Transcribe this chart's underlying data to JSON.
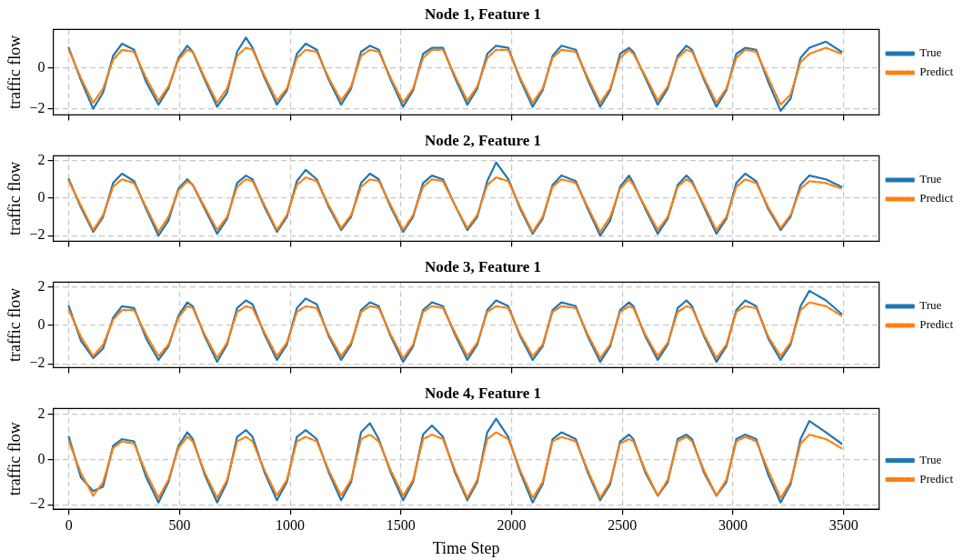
{
  "chart_data": [
    {
      "type": "line",
      "title": "Node 1, Feature 1",
      "ylabel": "traffic flow",
      "xlim": [
        -70,
        3660
      ],
      "xticks": [
        0,
        500,
        1000,
        1500,
        2000,
        2500,
        3000,
        3500
      ],
      "ylim": [
        -2.3,
        1.9
      ],
      "yticks": [
        -2,
        0
      ],
      "grid": true,
      "legend": "right",
      "marker": "none",
      "tick_labels": "y",
      "x": [
        0,
        55,
        110,
        155,
        200,
        240,
        295,
        350,
        405,
        450,
        495,
        535,
        560,
        615,
        670,
        715,
        760,
        800,
        830,
        885,
        940,
        985,
        1030,
        1070,
        1120,
        1175,
        1230,
        1275,
        1320,
        1360,
        1400,
        1455,
        1510,
        1555,
        1600,
        1640,
        1690,
        1745,
        1800,
        1845,
        1890,
        1930,
        1985,
        2040,
        2095,
        2140,
        2185,
        2225,
        2290,
        2345,
        2400,
        2445,
        2490,
        2530,
        2550,
        2605,
        2660,
        2705,
        2750,
        2790,
        2815,
        2870,
        2925,
        2970,
        3015,
        3055,
        3105,
        3160,
        3215,
        3260,
        3305,
        3345,
        3420,
        3490
      ],
      "series": [
        {
          "name": "True",
          "color": "#1f77b4",
          "line_style": "solid",
          "values": [
            1.0,
            -0.6,
            -2.0,
            -1.2,
            0.6,
            1.2,
            0.9,
            -0.7,
            -1.8,
            -1.0,
            0.5,
            1.1,
            0.8,
            -0.6,
            -1.9,
            -1.2,
            0.8,
            1.5,
            1.0,
            -0.5,
            -1.8,
            -1.1,
            0.7,
            1.2,
            0.9,
            -0.6,
            -1.8,
            -1.0,
            0.8,
            1.1,
            0.9,
            -0.6,
            -1.9,
            -1.1,
            0.7,
            1.0,
            1.0,
            -0.5,
            -1.8,
            -1.0,
            0.7,
            1.1,
            1.0,
            -0.6,
            -1.9,
            -1.1,
            0.6,
            1.1,
            0.9,
            -0.6,
            -1.9,
            -1.1,
            0.7,
            1.0,
            0.8,
            -0.5,
            -1.8,
            -1.0,
            0.6,
            1.1,
            0.9,
            -0.6,
            -1.9,
            -1.1,
            0.7,
            1.0,
            0.9,
            -0.7,
            -2.1,
            -1.5,
            0.5,
            1.0,
            1.3,
            0.8
          ]
        },
        {
          "name": "Predict",
          "color": "#ff7f0e",
          "line_style": "dashed",
          "values": [
            0.9,
            -0.5,
            -1.7,
            -1.0,
            0.4,
            0.9,
            0.8,
            -0.5,
            -1.6,
            -0.9,
            0.4,
            0.9,
            0.8,
            -0.5,
            -1.7,
            -1.0,
            0.6,
            1.0,
            0.9,
            -0.4,
            -1.6,
            -1.0,
            0.5,
            0.9,
            0.8,
            -0.5,
            -1.6,
            -0.9,
            0.6,
            0.9,
            0.8,
            -0.5,
            -1.7,
            -1.0,
            0.5,
            0.9,
            0.9,
            -0.4,
            -1.6,
            -0.9,
            0.5,
            0.9,
            0.9,
            -0.5,
            -1.7,
            -1.0,
            0.5,
            0.9,
            0.8,
            -0.5,
            -1.7,
            -1.0,
            0.5,
            0.9,
            0.7,
            -0.4,
            -1.6,
            -0.9,
            0.5,
            0.9,
            0.8,
            -0.5,
            -1.7,
            -1.0,
            0.5,
            0.9,
            0.8,
            -0.5,
            -1.8,
            -1.3,
            0.3,
            0.7,
            1.0,
            0.7
          ]
        }
      ]
    },
    {
      "type": "line",
      "title": "Node 2, Feature 1",
      "ylabel": "traffic flow",
      "xlim": [
        -70,
        3660
      ],
      "xticks": [
        0,
        500,
        1000,
        1500,
        2000,
        2500,
        3000,
        3500
      ],
      "ylim": [
        -2.3,
        2.25
      ],
      "yticks": [
        -2,
        0,
        2
      ],
      "grid": true,
      "legend": "right",
      "marker": "none",
      "tick_labels": "y",
      "x": [
        0,
        55,
        110,
        155,
        200,
        240,
        295,
        350,
        405,
        450,
        495,
        535,
        560,
        615,
        670,
        715,
        760,
        800,
        830,
        885,
        940,
        985,
        1030,
        1070,
        1120,
        1175,
        1230,
        1275,
        1320,
        1360,
        1400,
        1455,
        1510,
        1555,
        1600,
        1640,
        1690,
        1745,
        1800,
        1845,
        1890,
        1930,
        1985,
        2040,
        2095,
        2140,
        2185,
        2225,
        2290,
        2345,
        2400,
        2445,
        2490,
        2530,
        2550,
        2605,
        2660,
        2705,
        2750,
        2790,
        2815,
        2870,
        2925,
        2970,
        3015,
        3055,
        3105,
        3160,
        3215,
        3260,
        3305,
        3345,
        3420,
        3490
      ],
      "series": [
        {
          "name": "True",
          "color": "#1f77b4",
          "line_style": "solid",
          "values": [
            1.0,
            -0.5,
            -1.8,
            -1.0,
            0.8,
            1.3,
            0.9,
            -0.6,
            -2.0,
            -1.2,
            0.5,
            1.0,
            0.7,
            -0.6,
            -1.9,
            -1.1,
            0.8,
            1.2,
            1.0,
            -0.5,
            -1.8,
            -1.0,
            0.9,
            1.5,
            1.0,
            -0.5,
            -1.7,
            -1.0,
            0.8,
            1.3,
            1.0,
            -0.5,
            -1.8,
            -1.0,
            0.8,
            1.2,
            1.0,
            -0.4,
            -1.7,
            -1.0,
            0.9,
            1.9,
            1.0,
            -0.6,
            -1.9,
            -1.1,
            0.7,
            1.2,
            0.9,
            -0.6,
            -2.0,
            -1.2,
            0.6,
            1.2,
            0.8,
            -0.6,
            -1.9,
            -1.1,
            0.7,
            1.2,
            0.9,
            -0.5,
            -1.9,
            -1.1,
            0.8,
            1.3,
            0.9,
            -0.6,
            -1.7,
            -1.0,
            0.7,
            1.2,
            1.0,
            0.6
          ]
        },
        {
          "name": "Predict",
          "color": "#ff7f0e",
          "line_style": "dashed",
          "values": [
            0.9,
            -0.4,
            -1.7,
            -0.9,
            0.6,
            1.0,
            0.8,
            -0.5,
            -1.8,
            -1.0,
            0.4,
            0.9,
            0.7,
            -0.5,
            -1.7,
            -1.0,
            0.6,
            1.0,
            0.9,
            -0.4,
            -1.7,
            -0.9,
            0.7,
            1.1,
            0.9,
            -0.4,
            -1.6,
            -0.9,
            0.6,
            1.0,
            0.9,
            -0.4,
            -1.7,
            -0.9,
            0.6,
            1.0,
            0.9,
            -0.4,
            -1.6,
            -0.9,
            0.7,
            1.1,
            0.9,
            -0.5,
            -1.8,
            -1.0,
            0.6,
            1.0,
            0.8,
            -0.5,
            -1.8,
            -1.0,
            0.5,
            1.0,
            0.7,
            -0.5,
            -1.7,
            -1.0,
            0.6,
            1.0,
            0.8,
            -0.4,
            -1.7,
            -1.0,
            0.6,
            1.0,
            0.8,
            -0.5,
            -1.6,
            -0.9,
            0.5,
            0.9,
            0.8,
            0.5
          ]
        }
      ]
    },
    {
      "type": "line",
      "title": "Node 3, Feature 1",
      "ylabel": "traffic flow",
      "xlim": [
        -70,
        3660
      ],
      "xticks": [
        0,
        500,
        1000,
        1500,
        2000,
        2500,
        3000,
        3500
      ],
      "ylim": [
        -2.2,
        2.25
      ],
      "yticks": [
        -2,
        0,
        2
      ],
      "grid": true,
      "legend": "right",
      "marker": "none",
      "tick_labels": "y",
      "x": [
        0,
        55,
        110,
        155,
        200,
        240,
        295,
        350,
        405,
        450,
        495,
        535,
        560,
        615,
        670,
        715,
        760,
        800,
        830,
        885,
        940,
        985,
        1030,
        1070,
        1120,
        1175,
        1230,
        1275,
        1320,
        1360,
        1400,
        1455,
        1510,
        1555,
        1600,
        1640,
        1690,
        1745,
        1800,
        1845,
        1890,
        1930,
        1985,
        2040,
        2095,
        2140,
        2185,
        2225,
        2290,
        2345,
        2400,
        2445,
        2490,
        2530,
        2550,
        2605,
        2660,
        2705,
        2750,
        2790,
        2815,
        2870,
        2925,
        2970,
        3015,
        3055,
        3105,
        3160,
        3215,
        3260,
        3305,
        3345,
        3420,
        3490
      ],
      "series": [
        {
          "name": "True",
          "color": "#1f77b4",
          "line_style": "solid",
          "values": [
            1.0,
            -0.8,
            -1.7,
            -1.2,
            0.4,
            1.0,
            0.9,
            -0.7,
            -1.8,
            -1.1,
            0.5,
            1.2,
            1.0,
            -0.6,
            -1.9,
            -1.0,
            0.9,
            1.3,
            1.1,
            -0.5,
            -1.8,
            -1.0,
            0.9,
            1.4,
            1.1,
            -0.6,
            -1.8,
            -1.0,
            0.8,
            1.2,
            1.0,
            -0.6,
            -1.9,
            -1.1,
            0.8,
            1.2,
            1.0,
            -0.5,
            -1.8,
            -1.0,
            0.8,
            1.3,
            1.0,
            -0.6,
            -1.8,
            -1.1,
            0.8,
            1.2,
            1.0,
            -0.6,
            -1.9,
            -1.1,
            0.8,
            1.2,
            1.0,
            -0.6,
            -1.8,
            -1.0,
            0.9,
            1.3,
            1.0,
            -0.6,
            -1.9,
            -1.1,
            0.8,
            1.3,
            1.0,
            -0.7,
            -1.8,
            -1.0,
            1.0,
            1.8,
            1.3,
            0.6
          ]
        },
        {
          "name": "Predict",
          "color": "#ff7f0e",
          "line_style": "dashed",
          "values": [
            0.8,
            -0.6,
            -1.6,
            -1.0,
            0.3,
            0.8,
            0.8,
            -0.5,
            -1.6,
            -1.0,
            0.4,
            1.0,
            0.9,
            -0.5,
            -1.7,
            -0.9,
            0.7,
            1.0,
            0.9,
            -0.4,
            -1.6,
            -0.9,
            0.7,
            1.0,
            0.9,
            -0.5,
            -1.6,
            -0.9,
            0.7,
            1.0,
            0.9,
            -0.5,
            -1.7,
            -1.0,
            0.7,
            1.0,
            0.9,
            -0.4,
            -1.6,
            -0.9,
            0.7,
            1.0,
            0.9,
            -0.5,
            -1.6,
            -1.0,
            0.7,
            1.0,
            0.9,
            -0.5,
            -1.7,
            -1.0,
            0.7,
            1.0,
            0.9,
            -0.5,
            -1.6,
            -0.9,
            0.7,
            1.0,
            0.9,
            -0.5,
            -1.7,
            -1.0,
            0.7,
            1.0,
            0.9,
            -0.6,
            -1.6,
            -0.9,
            0.8,
            1.2,
            1.0,
            0.5
          ]
        }
      ]
    },
    {
      "type": "line",
      "title": "Node 4, Feature 1",
      "xlabel": "Time Step",
      "ylabel": "traffic flow",
      "xlim": [
        -70,
        3660
      ],
      "xticks": [
        0,
        500,
        1000,
        1500,
        2000,
        2500,
        3000,
        3500
      ],
      "ylim": [
        -2.2,
        2.25
      ],
      "yticks": [
        -2,
        0,
        2
      ],
      "grid": true,
      "legend": "right",
      "marker": "none",
      "x": [
        0,
        55,
        110,
        155,
        200,
        240,
        295,
        350,
        405,
        450,
        495,
        535,
        560,
        615,
        670,
        715,
        760,
        800,
        830,
        885,
        940,
        985,
        1030,
        1070,
        1120,
        1175,
        1230,
        1275,
        1320,
        1360,
        1400,
        1455,
        1510,
        1555,
        1600,
        1640,
        1690,
        1745,
        1800,
        1845,
        1890,
        1930,
        1985,
        2040,
        2095,
        2140,
        2185,
        2225,
        2290,
        2345,
        2400,
        2445,
        2490,
        2530,
        2550,
        2605,
        2660,
        2705,
        2750,
        2790,
        2815,
        2870,
        2925,
        2970,
        3015,
        3055,
        3105,
        3160,
        3215,
        3260,
        3305,
        3345,
        3420,
        3490
      ],
      "series": [
        {
          "name": "True",
          "color": "#1f77b4",
          "line_style": "solid",
          "values": [
            1.0,
            -0.8,
            -1.4,
            -1.2,
            0.6,
            0.9,
            0.8,
            -0.8,
            -1.9,
            -1.0,
            0.6,
            1.2,
            0.9,
            -0.7,
            -1.9,
            -1.0,
            1.0,
            1.3,
            1.0,
            -0.6,
            -1.8,
            -1.0,
            1.0,
            1.3,
            0.9,
            -0.6,
            -1.8,
            -1.0,
            1.2,
            1.6,
            0.9,
            -0.6,
            -1.8,
            -1.0,
            1.1,
            1.5,
            1.0,
            -0.6,
            -1.8,
            -1.0,
            1.2,
            1.8,
            1.0,
            -0.6,
            -1.9,
            -1.1,
            0.9,
            1.2,
            0.9,
            -0.6,
            -1.8,
            -1.1,
            0.8,
            1.1,
            0.9,
            -0.6,
            -1.6,
            -1.0,
            0.9,
            1.1,
            0.9,
            -0.6,
            -1.6,
            -1.0,
            0.9,
            1.1,
            0.9,
            -0.7,
            -1.9,
            -1.1,
            0.9,
            1.7,
            1.2,
            0.7
          ]
        },
        {
          "name": "Predict",
          "color": "#ff7f0e",
          "line_style": "dashed",
          "values": [
            0.8,
            -0.6,
            -1.6,
            -1.0,
            0.5,
            0.8,
            0.7,
            -0.6,
            -1.7,
            -0.9,
            0.5,
            1.0,
            0.8,
            -0.6,
            -1.7,
            -0.9,
            0.8,
            1.0,
            0.8,
            -0.5,
            -1.6,
            -0.9,
            0.8,
            1.0,
            0.8,
            -0.5,
            -1.6,
            -0.9,
            0.9,
            1.1,
            0.8,
            -0.5,
            -1.6,
            -0.9,
            0.9,
            1.1,
            0.9,
            -0.5,
            -1.7,
            -0.9,
            0.9,
            1.2,
            0.9,
            -0.5,
            -1.7,
            -1.0,
            0.8,
            1.0,
            0.8,
            -0.5,
            -1.7,
            -1.0,
            0.7,
            0.9,
            0.8,
            -0.5,
            -1.6,
            -0.9,
            0.8,
            1.0,
            0.8,
            -0.5,
            -1.6,
            -0.9,
            0.8,
            1.0,
            0.8,
            -0.5,
            -1.7,
            -1.0,
            0.7,
            1.1,
            0.9,
            0.5
          ]
        }
      ]
    }
  ]
}
